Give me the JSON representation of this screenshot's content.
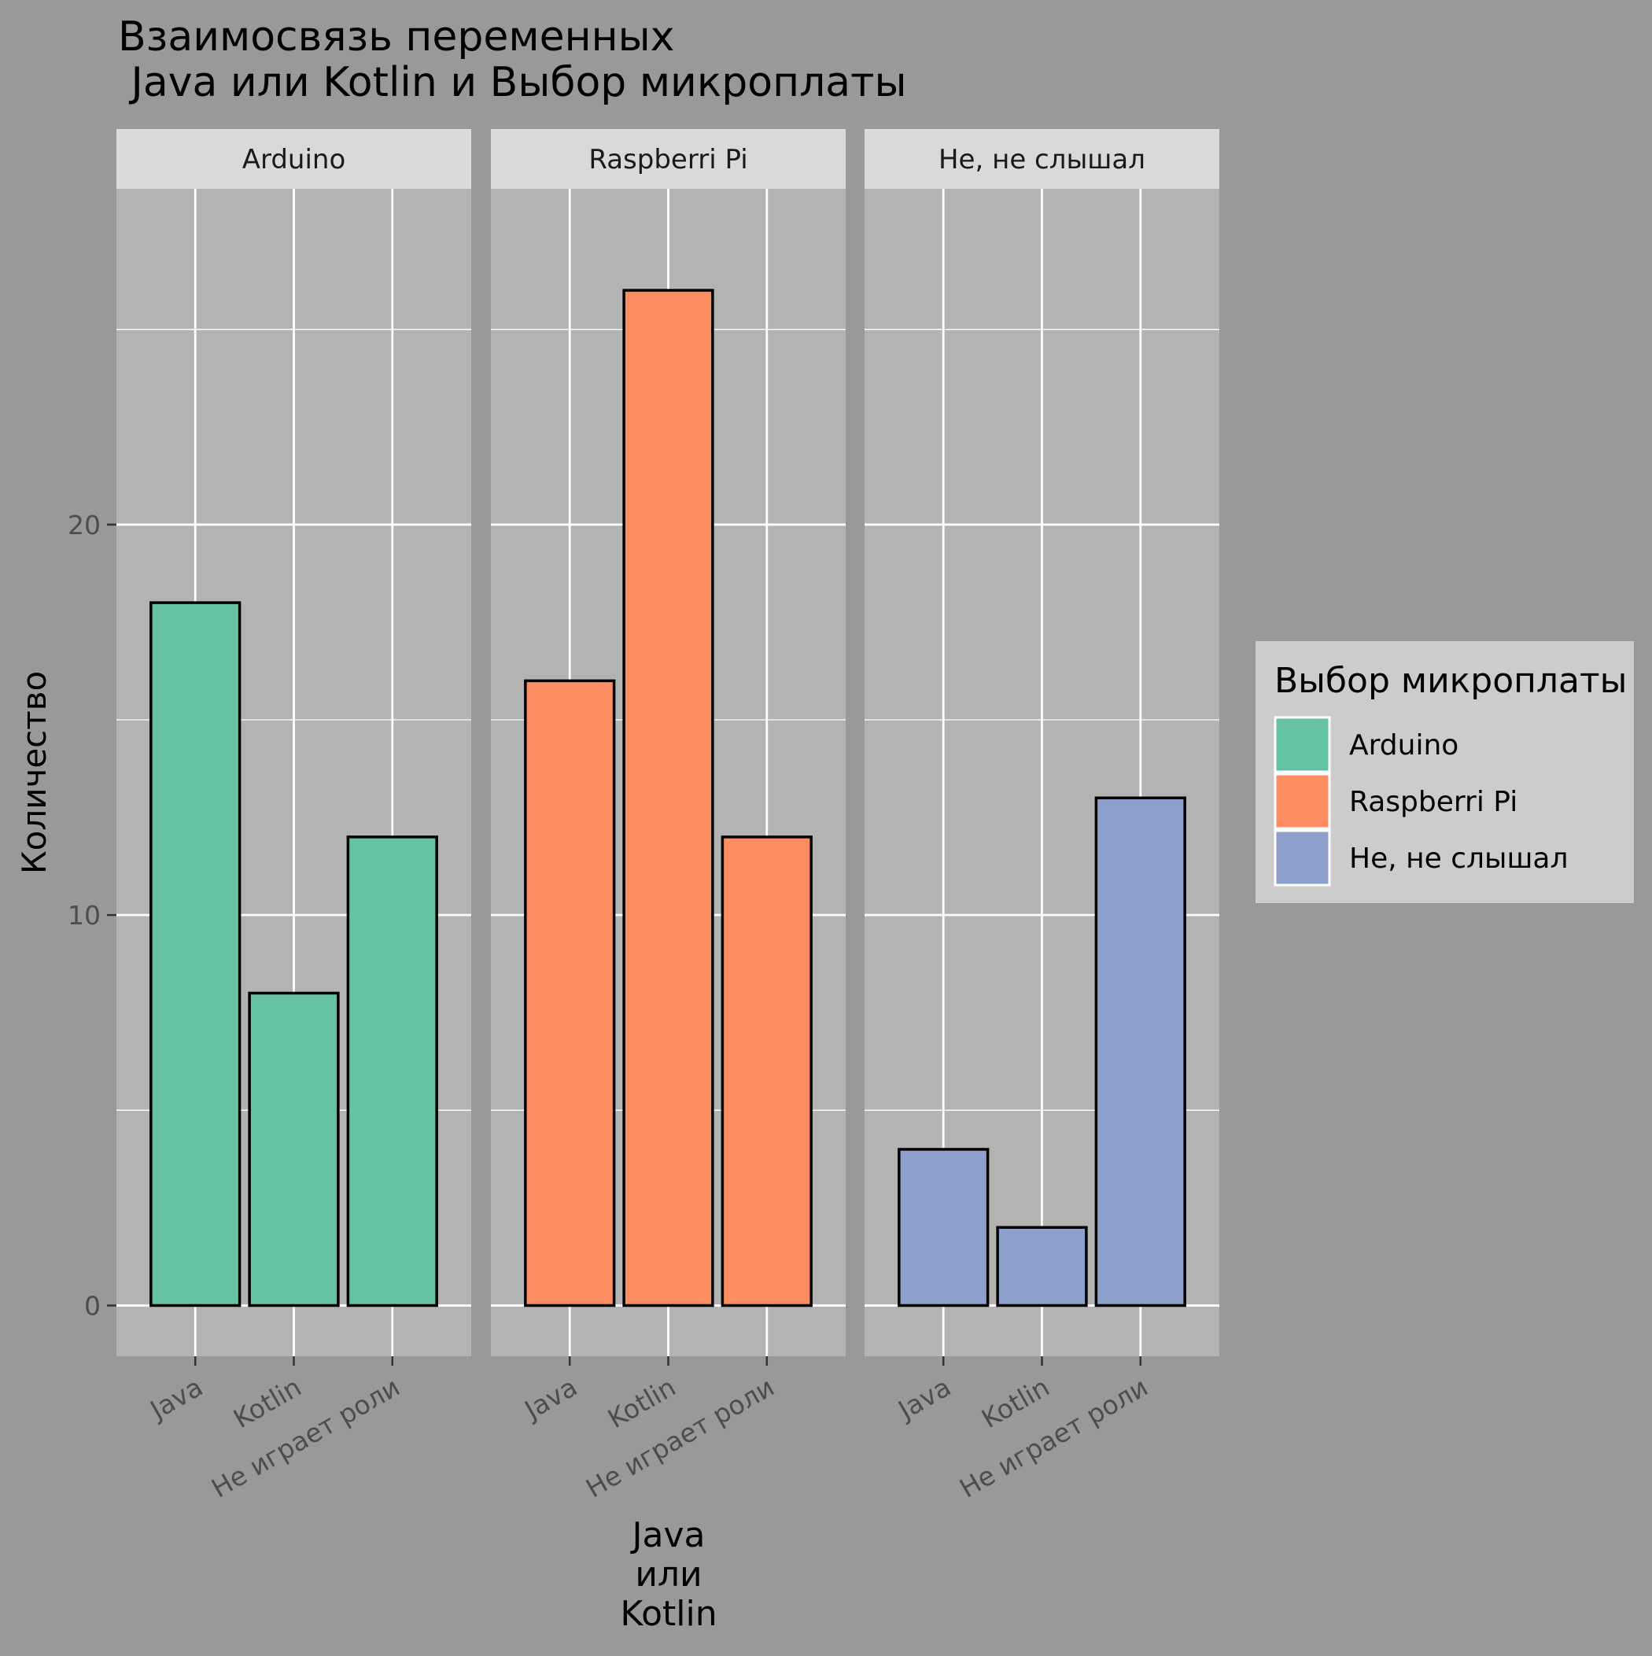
{
  "chart_data": {
    "type": "bar",
    "title": "Взаимосвязь переменных\n Java или Kotlin и Выбор микроплаты",
    "xlabel": "Java\nили\nKotlin",
    "ylabel": "Количество",
    "categories": [
      "Java",
      "Kotlin",
      "Не играет роли"
    ],
    "facets": [
      "Arduino",
      "Raspberri Pi",
      "Не, не слышал"
    ],
    "series": [
      {
        "name": "Arduino",
        "color": "#66C2A5",
        "values": [
          18,
          8,
          12
        ]
      },
      {
        "name": "Raspberri Pi",
        "color": "#FC8D62",
        "values": [
          16,
          26,
          12
        ]
      },
      {
        "name": "Не, не слышал",
        "color": "#8DA0CB",
        "values": [
          4,
          2,
          13
        ]
      }
    ],
    "yticks": [
      0,
      10,
      20
    ],
    "ylim": [
      -1.3,
      28.6
    ],
    "grid": true,
    "legend": {
      "title": "Выбор микроплаты",
      "position": "right"
    },
    "colors": {
      "background": "#999999",
      "panel": "#B3B3B3",
      "strip": "#D9D9D9",
      "legend_box": "#CCCCCC",
      "grid": "#FFFFFF",
      "bar_outline": "#000000"
    }
  }
}
